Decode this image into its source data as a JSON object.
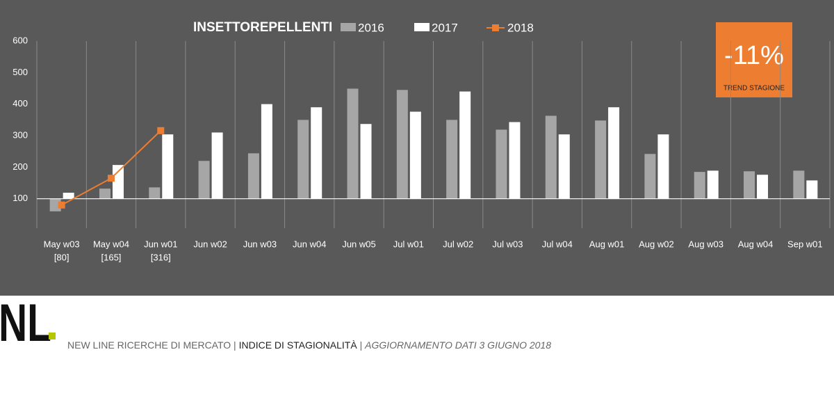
{
  "chart_data": {
    "type": "bar",
    "title": "INSETTOREPELLENTI",
    "categories": [
      "May w03",
      "May w04",
      "Jun w01",
      "Jun w02",
      "Jun w03",
      "Jun w04",
      "Jun w05",
      "Jul w01",
      "Jul w02",
      "Jul w03",
      "Jul w04",
      "Aug w01",
      "Aug w02",
      "Aug w03",
      "Aug w04",
      "Sep w01"
    ],
    "series": [
      {
        "name": "2016",
        "color": "#a6a6a6",
        "values": [
          60,
          132,
          136,
          220,
          244,
          350,
          449,
          445,
          350,
          319,
          363,
          348,
          242,
          185,
          187,
          189
        ]
      },
      {
        "name": "2017",
        "color": "#ffffff",
        "values": [
          119,
          207,
          304,
          310,
          400,
          390,
          337,
          376,
          440,
          343,
          304,
          390,
          304,
          189,
          176,
          158
        ]
      },
      {
        "name": "2018",
        "type": "line",
        "color": "#ed7d31",
        "values": [
          80,
          165,
          316,
          null,
          null,
          null,
          null,
          null,
          null,
          null,
          null,
          null,
          null,
          null,
          null,
          null
        ],
        "value_labels": [
          "[80]",
          "[165]",
          "[316]",
          null,
          null,
          null,
          null,
          null,
          null,
          null,
          null,
          null,
          null,
          null,
          null,
          null
        ]
      }
    ],
    "ylim": [
      0,
      600
    ],
    "yticks": [
      100,
      200,
      300,
      400,
      500,
      600
    ],
    "x_axis_crosses": 100,
    "annotations": [
      "-11%",
      "TREND STAGIONE"
    ]
  },
  "footer": {
    "logo": "NL",
    "company": "NEW LINE RICERCHE DI MERCATO",
    "index": "INDICE DI STAGIONALITÀ",
    "update": "AGGIORNAMENTO DATI 3 GIUGNO 2018"
  }
}
